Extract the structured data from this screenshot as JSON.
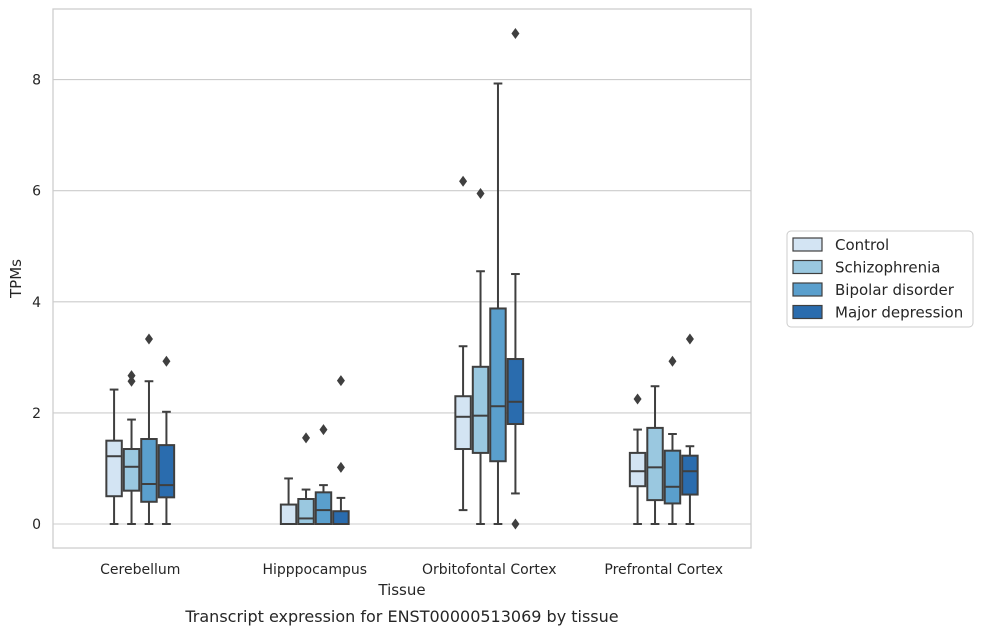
{
  "caption": "Transcript expression for ENST00000513069 by tissue",
  "chart_data": {
    "type": "box",
    "title": "",
    "xlabel": "Tissue",
    "ylabel": "TPMs",
    "ylim": [
      -0.4,
      9.3
    ],
    "yticks": [
      0,
      2,
      4,
      6,
      8
    ],
    "grid": "horizontal",
    "legend_position": "right",
    "categories": [
      "Cerebellum",
      "Hipppocampus",
      "Orbitofontal Cortex",
      "Prefrontal Cortex"
    ],
    "series": [
      {
        "name": "Control",
        "color": "#d3e4f3",
        "boxes": [
          {
            "whislo": 0.0,
            "q1": 0.5,
            "med": 1.22,
            "q3": 1.5,
            "whishi": 2.42,
            "fliers": []
          },
          {
            "whislo": 0.0,
            "q1": 0.0,
            "med": 0.0,
            "q3": 0.35,
            "whishi": 0.82,
            "fliers": []
          },
          {
            "whislo": 0.25,
            "q1": 1.35,
            "med": 1.93,
            "q3": 2.3,
            "whishi": 3.2,
            "fliers": [
              6.17
            ]
          },
          {
            "whislo": 0.0,
            "q1": 0.68,
            "med": 0.95,
            "q3": 1.28,
            "whishi": 1.7,
            "fliers": [
              2.25
            ]
          }
        ]
      },
      {
        "name": "Schizophrenia",
        "color": "#9ac8e0",
        "boxes": [
          {
            "whislo": 0.0,
            "q1": 0.6,
            "med": 1.03,
            "q3": 1.35,
            "whishi": 1.88,
            "fliers": [
              2.57,
              2.67
            ]
          },
          {
            "whislo": 0.0,
            "q1": 0.0,
            "med": 0.1,
            "q3": 0.45,
            "whishi": 0.62,
            "fliers": [
              1.55
            ]
          },
          {
            "whislo": 0.0,
            "q1": 1.28,
            "med": 1.95,
            "q3": 2.83,
            "whishi": 4.55,
            "fliers": [
              5.95
            ]
          },
          {
            "whislo": 0.0,
            "q1": 0.43,
            "med": 1.02,
            "q3": 1.73,
            "whishi": 2.48,
            "fliers": []
          }
        ]
      },
      {
        "name": "Bipolar disorder",
        "color": "#5a9fcd",
        "boxes": [
          {
            "whislo": 0.0,
            "q1": 0.4,
            "med": 0.72,
            "q3": 1.53,
            "whishi": 2.57,
            "fliers": [
              3.33
            ]
          },
          {
            "whislo": 0.0,
            "q1": 0.0,
            "med": 0.25,
            "q3": 0.57,
            "whishi": 0.7,
            "fliers": [
              1.7
            ]
          },
          {
            "whislo": 0.0,
            "q1": 1.13,
            "med": 2.12,
            "q3": 3.88,
            "whishi": 7.93,
            "fliers": []
          },
          {
            "whislo": 0.0,
            "q1": 0.37,
            "med": 0.67,
            "q3": 1.32,
            "whishi": 1.62,
            "fliers": [
              2.93
            ]
          }
        ]
      },
      {
        "name": "Major depression",
        "color": "#2a6cae",
        "boxes": [
          {
            "whislo": 0.0,
            "q1": 0.48,
            "med": 0.7,
            "q3": 1.42,
            "whishi": 2.02,
            "fliers": [
              2.93
            ]
          },
          {
            "whislo": 0.0,
            "q1": 0.0,
            "med": 0.0,
            "q3": 0.23,
            "whishi": 0.47,
            "fliers": [
              1.02,
              2.58
            ]
          },
          {
            "whislo": 0.55,
            "q1": 1.8,
            "med": 2.2,
            "q3": 2.97,
            "whishi": 4.5,
            "fliers": [
              0.0,
              8.83
            ]
          },
          {
            "whislo": 0.0,
            "q1": 0.53,
            "med": 0.95,
            "q3": 1.23,
            "whishi": 1.4,
            "fliers": [
              3.33
            ]
          }
        ]
      }
    ]
  }
}
